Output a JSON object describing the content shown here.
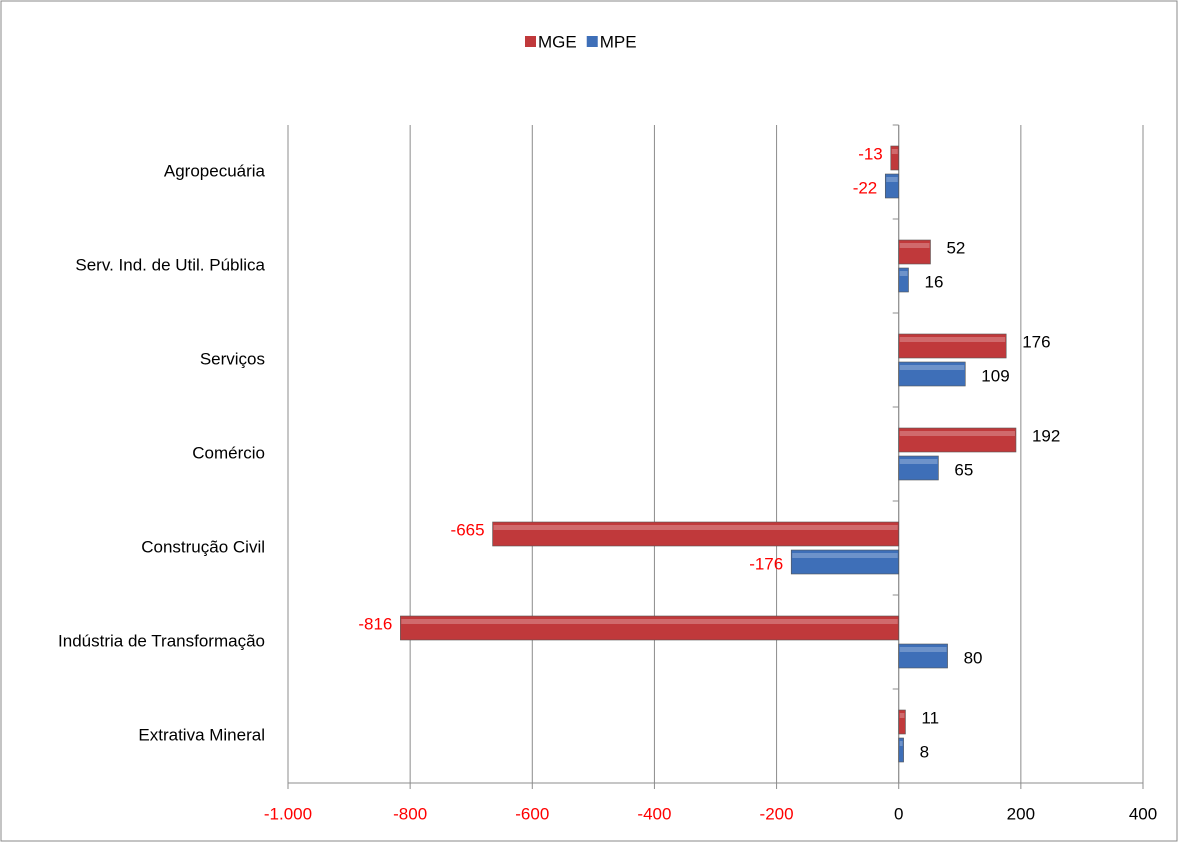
{
  "chart_data": {
    "type": "hbar",
    "categories": [
      "Agropecuária",
      "Serv. Ind. de Util.  Pública",
      "Serviços",
      "Comércio",
      "Construção Civil",
      "Indústria de Transformação",
      "Extrativa Mineral"
    ],
    "series": [
      {
        "name": "MGE",
        "color": "#c0393b",
        "values": [
          -13,
          52,
          176,
          192,
          -665,
          -816,
          11
        ]
      },
      {
        "name": "MPE",
        "color": "#3e6fb8",
        "values": [
          -22,
          16,
          109,
          65,
          -176,
          80,
          8
        ]
      }
    ],
    "xlim": [
      -1000,
      400
    ],
    "xticks": [
      {
        "value": -1000,
        "label": "-1.000"
      },
      -800,
      -600,
      -400,
      -200,
      0,
      200,
      400
    ],
    "grid": true,
    "negative_color": "#ff0000",
    "legend": "top"
  }
}
